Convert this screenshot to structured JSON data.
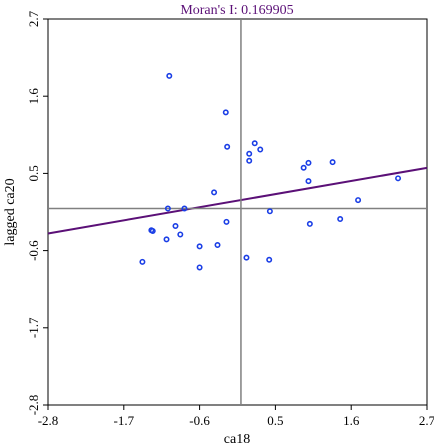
{
  "chart_data": {
    "type": "scatter",
    "title": "Moran's I: 0.169905",
    "xlabel": "ca18",
    "ylabel": "lagged ca20",
    "xlim": [
      -2.8,
      2.7
    ],
    "ylim": [
      -2.8,
      2.7
    ],
    "x_ticks": [
      "-2.8",
      "-1.7",
      "-0.6",
      "0.5",
      "1.6",
      "2.7"
    ],
    "y_ticks": [
      "-2.8",
      "-1.7",
      "-0.6",
      "0.5",
      "1.6",
      "2.7"
    ],
    "reference_lines": {
      "x": 0,
      "y": 0
    },
    "regression_line": {
      "slope": 0.17,
      "intercept": 0.12
    },
    "points": [
      {
        "x": -1.04,
        "y": 1.89
      },
      {
        "x": -0.22,
        "y": 1.37
      },
      {
        "x": -0.2,
        "y": 0.88
      },
      {
        "x": 0.2,
        "y": 0.93
      },
      {
        "x": 0.28,
        "y": 0.84
      },
      {
        "x": 0.12,
        "y": 0.78
      },
      {
        "x": 0.12,
        "y": 0.68
      },
      {
        "x": 0.98,
        "y": 0.65
      },
      {
        "x": 1.33,
        "y": 0.66
      },
      {
        "x": 0.91,
        "y": 0.58
      },
      {
        "x": 0.98,
        "y": 0.39
      },
      {
        "x": 2.28,
        "y": 0.43
      },
      {
        "x": 1.7,
        "y": 0.12
      },
      {
        "x": -0.39,
        "y": 0.23
      },
      {
        "x": -1.06,
        "y": 0.0
      },
      {
        "x": -0.82,
        "y": 0.0
      },
      {
        "x": 0.42,
        "y": -0.04
      },
      {
        "x": -0.21,
        "y": -0.19
      },
      {
        "x": -0.95,
        "y": -0.25
      },
      {
        "x": -1.3,
        "y": -0.31
      },
      {
        "x": -1.28,
        "y": -0.32
      },
      {
        "x": -0.88,
        "y": -0.37
      },
      {
        "x": -1.08,
        "y": -0.44
      },
      {
        "x": -0.34,
        "y": -0.52
      },
      {
        "x": -0.6,
        "y": -0.54
      },
      {
        "x": 1.44,
        "y": -0.15
      },
      {
        "x": 1.0,
        "y": -0.22
      },
      {
        "x": 0.08,
        "y": -0.7
      },
      {
        "x": 0.41,
        "y": -0.73
      },
      {
        "x": -1.43,
        "y": -0.76
      },
      {
        "x": -0.6,
        "y": -0.84
      }
    ]
  }
}
